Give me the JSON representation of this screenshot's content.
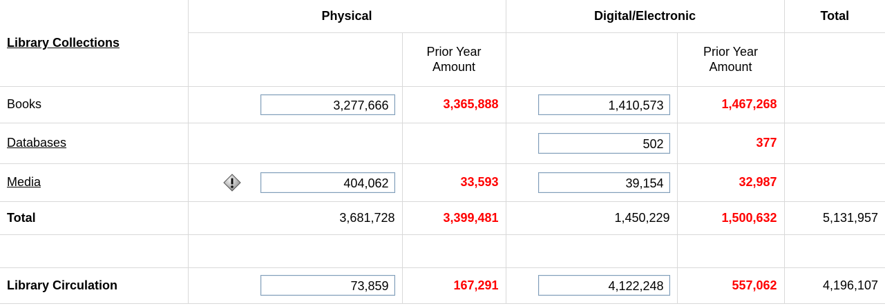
{
  "header": {
    "row_label": "Library Collections",
    "physical": "Physical",
    "digital": "Digital/Electronic",
    "total": "Total",
    "physical_prior": "Prior Year Amount",
    "digital_prior": "Prior Year Amount"
  },
  "rows": [
    {
      "label": "Books",
      "physical": "3,277,666",
      "physical_prior": "3,365,888",
      "digital": "1,410,573",
      "digital_prior": "1,467,268",
      "inputs": true
    },
    {
      "label": "Databases",
      "link": true,
      "digital": "502",
      "digital_prior": "377",
      "inputs": true
    },
    {
      "label": "Media",
      "link": true,
      "warning": true,
      "physical": "404,062",
      "physical_prior": "33,593",
      "digital": "39,154",
      "digital_prior": "32,987",
      "inputs": true
    },
    {
      "label": "Total",
      "bold": true,
      "physical": "3,681,728",
      "physical_prior": "3,399,481",
      "digital": "1,450,229",
      "digital_prior": "1,500,632",
      "total": "5,131,957"
    },
    {},
    {
      "label": "Library Circulation",
      "bold": true,
      "physical": "73,859",
      "physical_prior": "167,291",
      "digital": "4,122,248",
      "digital_prior": "557,062",
      "total": "4,196,107",
      "inputs": true
    }
  ]
}
